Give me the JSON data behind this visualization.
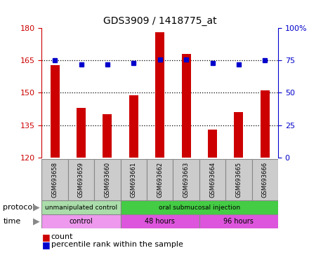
{
  "title": "GDS3909 / 1418775_at",
  "samples": [
    "GSM693658",
    "GSM693659",
    "GSM693660",
    "GSM693661",
    "GSM693662",
    "GSM693663",
    "GSM693664",
    "GSM693665",
    "GSM693666"
  ],
  "counts": [
    163,
    143,
    140,
    149,
    178,
    168,
    133,
    141,
    151
  ],
  "percentile_ranks": [
    75,
    72,
    72,
    73,
    76,
    76,
    73,
    72,
    75
  ],
  "ylim_left": [
    120,
    180
  ],
  "ylim_right": [
    0,
    100
  ],
  "yticks_left": [
    120,
    135,
    150,
    165,
    180
  ],
  "yticks_right": [
    0,
    25,
    50,
    75,
    100
  ],
  "bar_color": "#cc0000",
  "dot_color": "#0000cc",
  "protocol_groups": [
    {
      "label": "unmanipulated control",
      "start": 0,
      "end": 3,
      "color": "#aaddaa"
    },
    {
      "label": "oral submucosal injection",
      "start": 3,
      "end": 9,
      "color": "#44cc44"
    }
  ],
  "time_groups": [
    {
      "label": "control",
      "start": 0,
      "end": 3,
      "color": "#ee99ee"
    },
    {
      "label": "48 hours",
      "start": 3,
      "end": 6,
      "color": "#dd55dd"
    },
    {
      "label": "96 hours",
      "start": 6,
      "end": 9,
      "color": "#dd55dd"
    }
  ],
  "sample_box_color": "#cccccc",
  "grid_color": "black",
  "left_axis_color": "#cc0000",
  "right_axis_color": "#0000cc"
}
